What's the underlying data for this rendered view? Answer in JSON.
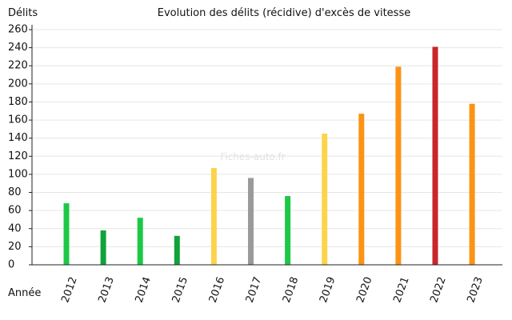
{
  "chart_data": {
    "type": "bar",
    "title": "Evolution des délits (récidive) d'excès de vitesse",
    "ylabel": "Délits",
    "xlabel": "Année",
    "watermark": "Fiches-auto.fr",
    "ylim": [
      0,
      260
    ],
    "yticks": [
      0,
      20,
      40,
      60,
      80,
      100,
      120,
      140,
      160,
      180,
      200,
      220,
      240,
      260
    ],
    "grid": true,
    "categories": [
      "2012",
      "2013",
      "2014",
      "2015",
      "2016",
      "2017",
      "2018",
      "2019",
      "2020",
      "2021",
      "2022",
      "2023"
    ],
    "values": [
      68,
      38,
      52,
      32,
      107,
      96,
      76,
      145,
      167,
      219,
      241,
      178
    ],
    "colors": [
      "#1dc846",
      "#11a33a",
      "#1dc846",
      "#11a33a",
      "#fcd44c",
      "#9a9a9a",
      "#1dc846",
      "#fcd44c",
      "#fb9314",
      "#fb9314",
      "#c8262a",
      "#fb9314"
    ]
  }
}
